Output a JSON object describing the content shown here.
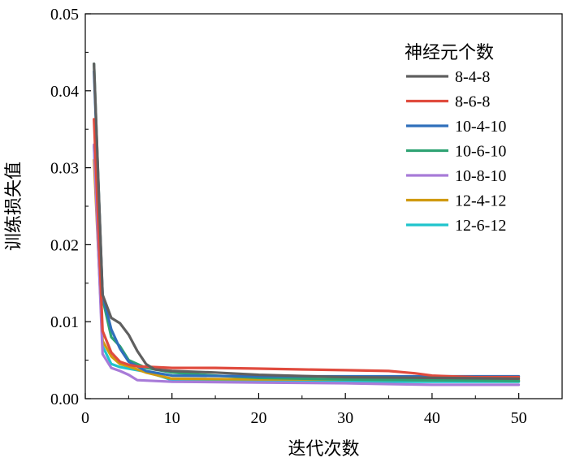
{
  "chart_data": {
    "type": "line",
    "title": "",
    "xlabel": "迭代次数",
    "ylabel": "训练损失值",
    "xlim": [
      0,
      55
    ],
    "ylim": [
      0,
      0.05
    ],
    "x_ticks": [
      0,
      10,
      20,
      30,
      40,
      50
    ],
    "x_tick_labels": [
      "0",
      "10",
      "20",
      "30",
      "40",
      "50"
    ],
    "y_ticks": [
      0.0,
      0.01,
      0.02,
      0.03,
      0.04,
      0.05
    ],
    "y_tick_labels": [
      "0.00",
      "0.01",
      "0.02",
      "0.03",
      "0.04",
      "0.05"
    ],
    "legend": {
      "title": "神经元个数",
      "position": "top-right"
    },
    "grid": false,
    "series": [
      {
        "name": "8-4-8",
        "color": "#5f5f5f",
        "x": [
          1,
          2,
          3,
          4,
          5,
          6,
          7,
          8,
          10,
          15,
          20,
          30,
          40,
          50
        ],
        "values": [
          0.0435,
          0.0135,
          0.0105,
          0.0098,
          0.0083,
          0.0062,
          0.0045,
          0.0038,
          0.0036,
          0.0034,
          0.0031,
          0.0028,
          0.0027,
          0.0026
        ]
      },
      {
        "name": "8-6-8",
        "color": "#e04b3e",
        "x": [
          1,
          2,
          3,
          4,
          5,
          6,
          8,
          10,
          15,
          20,
          25,
          30,
          35,
          38,
          40,
          42,
          45,
          50
        ],
        "values": [
          0.0363,
          0.0088,
          0.006,
          0.0048,
          0.0044,
          0.0042,
          0.0041,
          0.004,
          0.004,
          0.0039,
          0.0038,
          0.0037,
          0.0036,
          0.0033,
          0.003,
          0.0029,
          0.0028,
          0.0028
        ]
      },
      {
        "name": "10-4-10",
        "color": "#2f6fbb",
        "x": [
          1,
          2,
          3,
          4,
          5,
          7,
          10,
          20,
          30,
          40,
          50
        ],
        "values": [
          0.0425,
          0.0135,
          0.009,
          0.0065,
          0.0048,
          0.0036,
          0.003,
          0.0029,
          0.0029,
          0.0029,
          0.0029
        ]
      },
      {
        "name": "10-6-10",
        "color": "#2fa373",
        "x": [
          1,
          2,
          3,
          4,
          5,
          7,
          10,
          15,
          20,
          30,
          40,
          50
        ],
        "values": [
          0.0435,
          0.013,
          0.008,
          0.0068,
          0.005,
          0.004,
          0.0034,
          0.003,
          0.0027,
          0.0025,
          0.0024,
          0.0023
        ]
      },
      {
        "name": "10-8-10",
        "color": "#a87bd8",
        "x": [
          1,
          2,
          3,
          4,
          5,
          6,
          8,
          10,
          20,
          30,
          35,
          40,
          50
        ],
        "values": [
          0.033,
          0.0058,
          0.004,
          0.0036,
          0.0031,
          0.0024,
          0.0023,
          0.0022,
          0.0021,
          0.002,
          0.0019,
          0.0018,
          0.0018
        ]
      },
      {
        "name": "12-4-12",
        "color": "#d09a10",
        "x": [
          1,
          2,
          3,
          4,
          5,
          7,
          10,
          20,
          30,
          40,
          50
        ],
        "values": [
          0.031,
          0.0075,
          0.0055,
          0.0045,
          0.0042,
          0.0034,
          0.0026,
          0.0025,
          0.0025,
          0.0024,
          0.0024
        ]
      },
      {
        "name": "12-6-12",
        "color": "#1fc4cc",
        "x": [
          1,
          2,
          3,
          4,
          5,
          7,
          9,
          10,
          20,
          30,
          40,
          50
        ],
        "values": [
          0.0328,
          0.0068,
          0.0045,
          0.0041,
          0.0039,
          0.0035,
          0.0028,
          0.0024,
          0.0023,
          0.0022,
          0.0022,
          0.0022
        ]
      }
    ]
  }
}
